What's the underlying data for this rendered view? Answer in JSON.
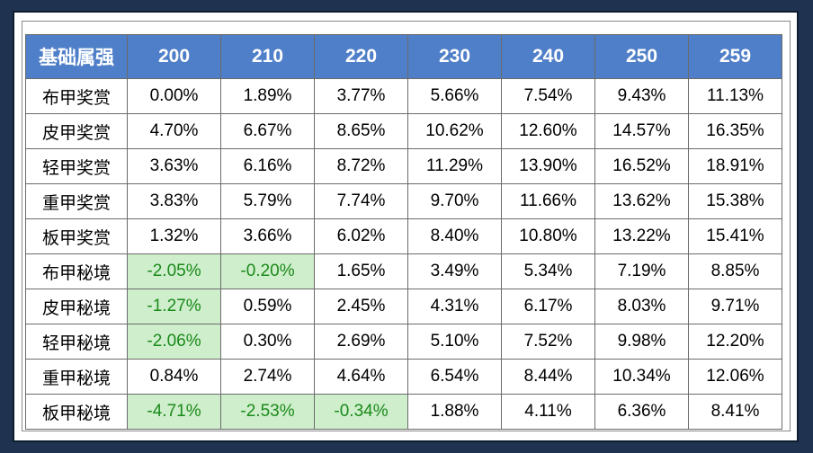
{
  "table": {
    "corner": "基础属强",
    "columns": [
      "200",
      "210",
      "220",
      "230",
      "240",
      "250",
      "259"
    ],
    "rows": [
      {
        "label": "布甲奖赏",
        "values": [
          "0.00%",
          "1.89%",
          "3.77%",
          "5.66%",
          "7.54%",
          "9.43%",
          "11.13%"
        ]
      },
      {
        "label": "皮甲奖赏",
        "values": [
          "4.70%",
          "6.67%",
          "8.65%",
          "10.62%",
          "12.60%",
          "14.57%",
          "16.35%"
        ]
      },
      {
        "label": "轻甲奖赏",
        "values": [
          "3.63%",
          "6.16%",
          "8.72%",
          "11.29%",
          "13.90%",
          "16.52%",
          "18.91%"
        ]
      },
      {
        "label": "重甲奖赏",
        "values": [
          "3.83%",
          "5.79%",
          "7.74%",
          "9.70%",
          "11.66%",
          "13.62%",
          "15.38%"
        ]
      },
      {
        "label": "板甲奖赏",
        "values": [
          "1.32%",
          "3.66%",
          "6.02%",
          "8.40%",
          "10.80%",
          "13.22%",
          "15.41%"
        ]
      },
      {
        "label": "布甲秘境",
        "values": [
          "-2.05%",
          "-0.20%",
          "1.65%",
          "3.49%",
          "5.34%",
          "7.19%",
          "8.85%"
        ]
      },
      {
        "label": "皮甲秘境",
        "values": [
          "-1.27%",
          "0.59%",
          "2.45%",
          "4.31%",
          "6.17%",
          "8.03%",
          "9.71%"
        ]
      },
      {
        "label": "轻甲秘境",
        "values": [
          "-2.06%",
          "0.30%",
          "2.69%",
          "5.10%",
          "7.52%",
          "9.98%",
          "12.20%"
        ]
      },
      {
        "label": "重甲秘境",
        "values": [
          "0.84%",
          "2.74%",
          "4.64%",
          "6.54%",
          "8.44%",
          "10.34%",
          "12.06%"
        ]
      },
      {
        "label": "板甲秘境",
        "values": [
          "-4.71%",
          "-2.53%",
          "-0.34%",
          "1.88%",
          "4.11%",
          "6.36%",
          "8.41%"
        ]
      }
    ]
  },
  "colors": {
    "header_bg": "#4f7fc8",
    "negative_bg": "#cfeecc",
    "negative_text": "#1a8a1a",
    "page_bg": "#1f3350"
  }
}
